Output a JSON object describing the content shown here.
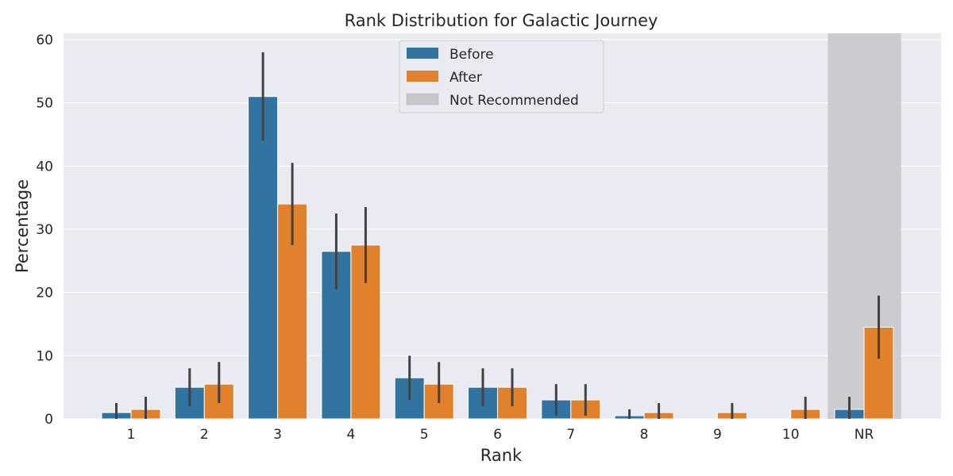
{
  "chart_data": {
    "type": "bar",
    "title": "Rank Distribution for Galactic Journey",
    "xlabel": "Rank",
    "ylabel": "Percentage",
    "categories": [
      "1",
      "2",
      "3",
      "4",
      "5",
      "6",
      "7",
      "8",
      "9",
      "10",
      "NR"
    ],
    "ylim": [
      0,
      61
    ],
    "yticks": [
      0,
      10,
      20,
      30,
      40,
      50,
      60
    ],
    "grid": true,
    "legend_position": "top-center",
    "series": [
      {
        "name": "Before",
        "color": "#3274a1",
        "values": [
          1.0,
          5.0,
          51.0,
          26.5,
          6.5,
          5.0,
          3.0,
          0.5,
          0.0,
          0.0,
          1.5
        ],
        "err_low": [
          0.0,
          2.0,
          44.0,
          20.5,
          3.0,
          2.0,
          0.5,
          0.0,
          0.0,
          0.0,
          0.0
        ],
        "err_high": [
          2.5,
          8.0,
          58.0,
          32.5,
          10.0,
          8.0,
          5.5,
          1.5,
          0.0,
          0.0,
          3.5
        ]
      },
      {
        "name": "After",
        "color": "#e1812c",
        "values": [
          1.5,
          5.5,
          34.0,
          27.5,
          5.5,
          5.0,
          3.0,
          1.0,
          1.0,
          1.5,
          14.5
        ],
        "err_low": [
          0.0,
          2.5,
          27.5,
          21.5,
          2.5,
          2.0,
          0.5,
          0.0,
          0.0,
          0.0,
          9.5
        ],
        "err_high": [
          3.5,
          9.0,
          40.5,
          33.5,
          9.0,
          8.0,
          5.5,
          2.5,
          2.5,
          3.5,
          19.5
        ]
      }
    ],
    "highlight": {
      "category": "NR",
      "label": "Not Recommended",
      "color": "#c8c8cc"
    }
  }
}
